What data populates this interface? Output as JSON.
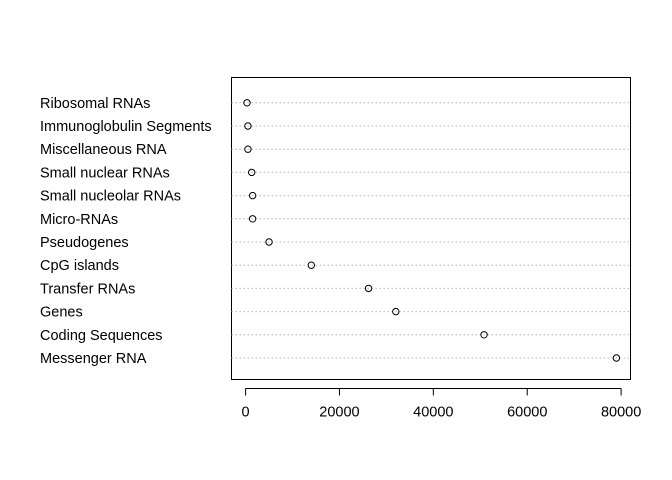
{
  "chart_data": {
    "type": "scatter",
    "title": "",
    "xlabel": "",
    "ylabel": "",
    "categories": [
      "Messenger RNA",
      "Coding Sequences",
      "Genes",
      "Transfer RNAs",
      "CpG islands",
      "Pseudogenes",
      "Micro-RNAs",
      "Small nucleolar RNAs",
      "Small nuclear RNAs",
      "Miscellaneous RNA",
      "Immunoglobulin Segments",
      "Ribosomal RNAs"
    ],
    "values": [
      79000,
      50800,
      32000,
      26200,
      14000,
      5000,
      1500,
      1500,
      1300,
      500,
      500,
      300
    ],
    "xlim": [
      -3000,
      82000
    ],
    "xticks": [
      0,
      20000,
      40000,
      60000,
      80000
    ],
    "xtick_labels": [
      "0",
      "20000",
      "40000",
      "60000",
      "80000"
    ],
    "grid": "dotted horizontal guide per category",
    "marker": "open circle"
  }
}
